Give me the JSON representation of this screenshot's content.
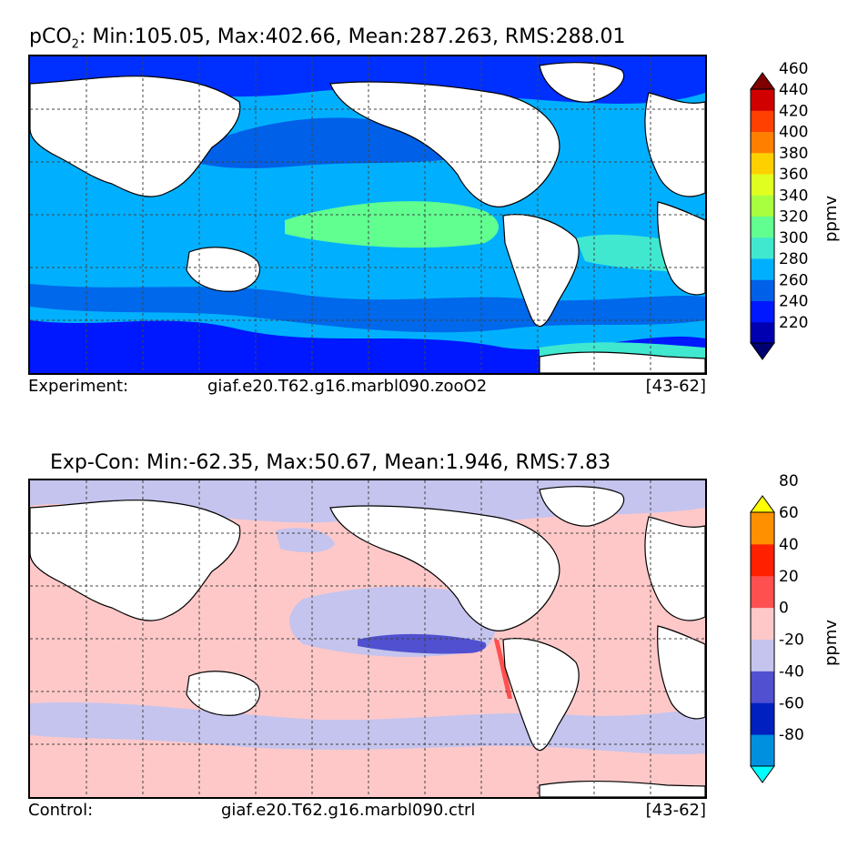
{
  "chart_data": [
    {
      "type": "heatmap",
      "title_prefix": "pCO",
      "title_subscript": "2",
      "title_rest": ": Min:105.05, Max:402.66, Mean:287.263, RMS:288.01",
      "caption_left": "Experiment:",
      "caption_center": "giaf.e20.T62.g16.marbl090.zooO2",
      "caption_right": "[43-62]",
      "colorbar": {
        "unit": "ppmv",
        "ticks": [
          "460",
          "440",
          "420",
          "400",
          "380",
          "360",
          "340",
          "320",
          "300",
          "280",
          "260",
          "240",
          "220"
        ],
        "levels": [
          220,
          240,
          260,
          280,
          300,
          320,
          340,
          360,
          380,
          400,
          420,
          440,
          460
        ],
        "colors": [
          "#000070",
          "#0000b0",
          "#0018ff",
          "#0060e8",
          "#00b0ff",
          "#40e8d0",
          "#60ff90",
          "#a8ff40",
          "#e0ff20",
          "#ffd000",
          "#ff8000",
          "#ff4000",
          "#d00000",
          "#800000"
        ]
      },
      "map_fill": {
        "ocean_base": "#00b0ff",
        "south": "#0018ff",
        "north": "#0030ff",
        "pacific_eq": "#60ff90",
        "land": "#ffffff"
      }
    },
    {
      "type": "heatmap",
      "title": "Exp-Con: Min:-62.35, Max:50.67, Mean:1.946, RMS:7.83",
      "caption_left": "Control:",
      "caption_center": "giaf.e20.T62.g16.marbl090.ctrl",
      "caption_right": "[43-62]",
      "colorbar": {
        "unit": "ppmv",
        "ticks": [
          "80",
          "60",
          "40",
          "20",
          "0",
          "-20",
          "-40",
          "-60",
          "-80"
        ],
        "levels": [
          -80,
          -60,
          -40,
          -20,
          0,
          20,
          40,
          60,
          80
        ],
        "colors": [
          "#00ffff",
          "#0090e0",
          "#0020c0",
          "#5050d0",
          "#c4c4ee",
          "#ffc8c8",
          "#ff5050",
          "#ff2000",
          "#ff9000",
          "#ffff00"
        ]
      },
      "map_fill": {
        "ocean_base": "#ffc8c8",
        "negative": "#c4c4ee",
        "strong_negative": "#5050d0",
        "positive": "#ff5050",
        "land": "#ffffff"
      }
    }
  ]
}
